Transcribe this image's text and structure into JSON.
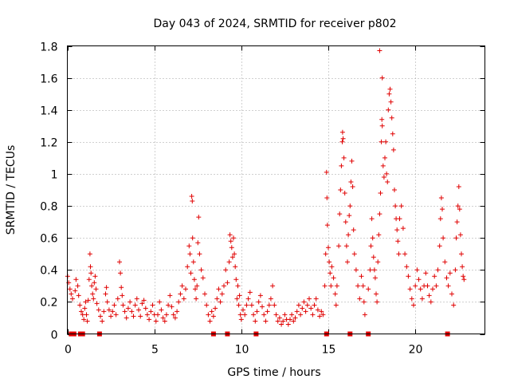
{
  "chart_data": {
    "type": "scatter",
    "title": "Day 043 of 2024, SRMTID for receiver p802",
    "xlabel": "GPS time / hours",
    "ylabel": "SRMTID / TECUs",
    "xlim": [
      0,
      24
    ],
    "ylim": [
      0,
      1.8
    ],
    "xticks": [
      0,
      5,
      10,
      15,
      20
    ],
    "xtick_labels": [
      "0",
      "5",
      "10",
      "15",
      "20"
    ],
    "yticks": [
      0,
      0.2,
      0.4,
      0.6,
      0.8,
      1.0,
      1.2,
      1.4,
      1.6,
      1.8
    ],
    "ytick_labels": [
      "0",
      "0.2",
      "0.4",
      "0.6",
      "0.8",
      "1",
      "1.2",
      "1.4",
      "1.6",
      "1.8"
    ],
    "grid": true,
    "marker": "plus",
    "color": "#e00000",
    "series": [
      {
        "name": "SRMTID",
        "points": [
          [
            0.02,
            0.36
          ],
          [
            0.08,
            0.32
          ],
          [
            0.15,
            0.28
          ],
          [
            0.22,
            0.25
          ],
          [
            0.3,
            0.22
          ],
          [
            0.45,
            0.27
          ],
          [
            0.5,
            0.34
          ],
          [
            0.6,
            0.3
          ],
          [
            0.65,
            0.24
          ],
          [
            0.72,
            0.18
          ],
          [
            0.8,
            0.14
          ],
          [
            0.88,
            0.12
          ],
          [
            0.95,
            0.09
          ],
          [
            1.0,
            0.16
          ],
          [
            1.05,
            0.2
          ],
          [
            1.1,
            0.12
          ],
          [
            1.15,
            0.08
          ],
          [
            1.2,
            0.21
          ],
          [
            1.25,
            0.34
          ],
          [
            1.3,
            0.5
          ],
          [
            1.33,
            0.42
          ],
          [
            1.36,
            0.38
          ],
          [
            1.4,
            0.3
          ],
          [
            1.45,
            0.25
          ],
          [
            1.5,
            0.22
          ],
          [
            1.55,
            0.32
          ],
          [
            1.6,
            0.36
          ],
          [
            1.65,
            0.28
          ],
          [
            1.7,
            0.19
          ],
          [
            1.8,
            0.15
          ],
          [
            1.9,
            0.11
          ],
          [
            2.0,
            0.08
          ],
          [
            2.1,
            0.14
          ],
          [
            2.2,
            0.25
          ],
          [
            2.25,
            0.29
          ],
          [
            2.3,
            0.2
          ],
          [
            2.4,
            0.15
          ],
          [
            2.5,
            0.11
          ],
          [
            2.6,
            0.14
          ],
          [
            2.7,
            0.18
          ],
          [
            2.8,
            0.12
          ],
          [
            2.9,
            0.22
          ],
          [
            3.0,
            0.45
          ],
          [
            3.05,
            0.38
          ],
          [
            3.1,
            0.29
          ],
          [
            3.15,
            0.24
          ],
          [
            3.2,
            0.18
          ],
          [
            3.3,
            0.14
          ],
          [
            3.4,
            0.1
          ],
          [
            3.5,
            0.16
          ],
          [
            3.6,
            0.2
          ],
          [
            3.7,
            0.14
          ],
          [
            3.8,
            0.11
          ],
          [
            3.9,
            0.18
          ],
          [
            4.0,
            0.22
          ],
          [
            4.1,
            0.15
          ],
          [
            4.2,
            0.11
          ],
          [
            4.3,
            0.19
          ],
          [
            4.4,
            0.21
          ],
          [
            4.5,
            0.16
          ],
          [
            4.6,
            0.12
          ],
          [
            4.7,
            0.09
          ],
          [
            4.8,
            0.14
          ],
          [
            4.9,
            0.18
          ],
          [
            5.0,
            0.12
          ],
          [
            5.1,
            0.08
          ],
          [
            5.2,
            0.12
          ],
          [
            5.3,
            0.2
          ],
          [
            5.4,
            0.15
          ],
          [
            5.5,
            0.1
          ],
          [
            5.6,
            0.08
          ],
          [
            5.7,
            0.12
          ],
          [
            5.8,
            0.18
          ],
          [
            5.9,
            0.24
          ],
          [
            6.0,
            0.17
          ],
          [
            6.1,
            0.12
          ],
          [
            6.2,
            0.1
          ],
          [
            6.3,
            0.14
          ],
          [
            6.4,
            0.2
          ],
          [
            6.5,
            0.25
          ],
          [
            6.6,
            0.3
          ],
          [
            6.7,
            0.22
          ],
          [
            6.8,
            0.28
          ],
          [
            6.9,
            0.42
          ],
          [
            7.0,
            0.55
          ],
          [
            7.05,
            0.5
          ],
          [
            7.1,
            0.38
          ],
          [
            7.15,
            0.86
          ],
          [
            7.18,
            0.83
          ],
          [
            7.2,
            0.6
          ],
          [
            7.25,
            0.45
          ],
          [
            7.3,
            0.34
          ],
          [
            7.35,
            0.28
          ],
          [
            7.4,
            0.22
          ],
          [
            7.45,
            0.3
          ],
          [
            7.5,
            0.57
          ],
          [
            7.55,
            0.73
          ],
          [
            7.6,
            0.5
          ],
          [
            7.7,
            0.4
          ],
          [
            7.8,
            0.35
          ],
          [
            7.9,
            0.25
          ],
          [
            8.0,
            0.18
          ],
          [
            8.1,
            0.12
          ],
          [
            8.2,
            0.08
          ],
          [
            8.3,
            0.14
          ],
          [
            8.4,
            0.11
          ],
          [
            8.5,
            0.16
          ],
          [
            8.6,
            0.22
          ],
          [
            8.7,
            0.28
          ],
          [
            8.8,
            0.2
          ],
          [
            8.9,
            0.25
          ],
          [
            9.0,
            0.3
          ],
          [
            9.1,
            0.4
          ],
          [
            9.2,
            0.32
          ],
          [
            9.3,
            0.45
          ],
          [
            9.35,
            0.62
          ],
          [
            9.4,
            0.58
          ],
          [
            9.45,
            0.54
          ],
          [
            9.5,
            0.48
          ],
          [
            9.55,
            0.6
          ],
          [
            9.6,
            0.5
          ],
          [
            9.65,
            0.42
          ],
          [
            9.7,
            0.34
          ],
          [
            9.75,
            0.22
          ],
          [
            9.8,
            0.3
          ],
          [
            9.85,
            0.18
          ],
          [
            9.9,
            0.24
          ],
          [
            9.95,
            0.12
          ],
          [
            10.0,
            0.09
          ],
          [
            10.1,
            0.15
          ],
          [
            10.2,
            0.12
          ],
          [
            10.3,
            0.18
          ],
          [
            10.4,
            0.22
          ],
          [
            10.5,
            0.26
          ],
          [
            10.6,
            0.18
          ],
          [
            10.7,
            0.12
          ],
          [
            10.8,
            0.08
          ],
          [
            10.9,
            0.14
          ],
          [
            11.0,
            0.2
          ],
          [
            11.1,
            0.24
          ],
          [
            11.2,
            0.17
          ],
          [
            11.3,
            0.12
          ],
          [
            11.4,
            0.08
          ],
          [
            11.5,
            0.14
          ],
          [
            11.6,
            0.18
          ],
          [
            11.7,
            0.22
          ],
          [
            11.8,
            0.3
          ],
          [
            11.9,
            0.18
          ],
          [
            12.0,
            0.12
          ],
          [
            12.1,
            0.08
          ],
          [
            12.2,
            0.1
          ],
          [
            12.3,
            0.06
          ],
          [
            12.4,
            0.08
          ],
          [
            12.5,
            0.12
          ],
          [
            12.6,
            0.09
          ],
          [
            12.7,
            0.06
          ],
          [
            12.8,
            0.09
          ],
          [
            12.9,
            0.12
          ],
          [
            13.0,
            0.08
          ],
          [
            13.1,
            0.1
          ],
          [
            13.2,
            0.14
          ],
          [
            13.3,
            0.18
          ],
          [
            13.4,
            0.12
          ],
          [
            13.5,
            0.16
          ],
          [
            13.6,
            0.2
          ],
          [
            13.7,
            0.14
          ],
          [
            13.8,
            0.18
          ],
          [
            13.9,
            0.22
          ],
          [
            14.0,
            0.16
          ],
          [
            14.1,
            0.12
          ],
          [
            14.2,
            0.18
          ],
          [
            14.3,
            0.22
          ],
          [
            14.4,
            0.15
          ],
          [
            14.5,
            0.11
          ],
          [
            14.6,
            0.14
          ],
          [
            14.7,
            0.12
          ],
          [
            14.8,
            0.3
          ],
          [
            14.85,
            0.5
          ],
          [
            14.9,
            1.01
          ],
          [
            14.92,
            0.85
          ],
          [
            14.95,
            0.68
          ],
          [
            15.0,
            0.54
          ],
          [
            15.05,
            0.45
          ],
          [
            15.1,
            0.38
          ],
          [
            15.15,
            0.3
          ],
          [
            15.2,
            0.42
          ],
          [
            15.3,
            0.35
          ],
          [
            15.4,
            0.25
          ],
          [
            15.45,
            0.18
          ],
          [
            15.5,
            0.3
          ],
          [
            15.6,
            0.55
          ],
          [
            15.65,
            0.75
          ],
          [
            15.7,
            0.9
          ],
          [
            15.75,
            1.05
          ],
          [
            15.8,
            1.2
          ],
          [
            15.82,
            1.26
          ],
          [
            15.85,
            1.22
          ],
          [
            15.9,
            1.1
          ],
          [
            15.95,
            0.88
          ],
          [
            16.0,
            0.7
          ],
          [
            16.05,
            0.55
          ],
          [
            16.1,
            0.45
          ],
          [
            16.15,
            0.62
          ],
          [
            16.2,
            0.74
          ],
          [
            16.25,
            0.8
          ],
          [
            16.3,
            0.95
          ],
          [
            16.35,
            1.08
          ],
          [
            16.4,
            0.92
          ],
          [
            16.45,
            0.65
          ],
          [
            16.5,
            0.5
          ],
          [
            16.6,
            0.4
          ],
          [
            16.7,
            0.3
          ],
          [
            16.8,
            0.22
          ],
          [
            16.9,
            0.36
          ],
          [
            17.0,
            0.3
          ],
          [
            17.05,
            0.2
          ],
          [
            17.1,
            0.12
          ],
          [
            17.3,
            0.28
          ],
          [
            17.4,
            0.4
          ],
          [
            17.45,
            0.55
          ],
          [
            17.5,
            0.72
          ],
          [
            17.55,
            0.6
          ],
          [
            17.6,
            0.48
          ],
          [
            17.65,
            0.4
          ],
          [
            17.7,
            0.35
          ],
          [
            17.75,
            0.25
          ],
          [
            17.8,
            0.2
          ],
          [
            17.85,
            0.45
          ],
          [
            17.9,
            0.62
          ],
          [
            17.95,
            0.75
          ],
          [
            18.0,
            0.88
          ],
          [
            18.05,
            1.2
          ],
          [
            18.08,
            1.34
          ],
          [
            18.1,
            1.3
          ],
          [
            18.15,
            1.05
          ],
          [
            18.2,
            0.98
          ],
          [
            18.25,
            1.1
          ],
          [
            18.3,
            1.2
          ],
          [
            18.35,
            1.0
          ],
          [
            18.4,
            0.95
          ],
          [
            18.45,
            1.4
          ],
          [
            18.5,
            1.5
          ],
          [
            18.55,
            1.53
          ],
          [
            18.6,
            1.45
          ],
          [
            18.65,
            1.35
          ],
          [
            18.7,
            1.25
          ],
          [
            18.75,
            1.15
          ],
          [
            18.8,
            0.9
          ],
          [
            18.85,
            0.8
          ],
          [
            18.9,
            0.72
          ],
          [
            18.95,
            0.65
          ],
          [
            19.0,
            0.58
          ],
          [
            19.05,
            0.5
          ],
          [
            19.1,
            0.72
          ],
          [
            19.2,
            0.8
          ],
          [
            19.3,
            0.66
          ],
          [
            19.4,
            0.5
          ],
          [
            19.5,
            0.42
          ],
          [
            19.6,
            0.36
          ],
          [
            19.7,
            0.28
          ],
          [
            19.8,
            0.22
          ],
          [
            19.9,
            0.18
          ],
          [
            20.0,
            0.3
          ],
          [
            20.1,
            0.4
          ],
          [
            20.2,
            0.34
          ],
          [
            20.3,
            0.28
          ],
          [
            20.4,
            0.22
          ],
          [
            20.5,
            0.3
          ],
          [
            20.6,
            0.38
          ],
          [
            20.7,
            0.3
          ],
          [
            20.8,
            0.24
          ],
          [
            20.9,
            0.2
          ],
          [
            21.0,
            0.28
          ],
          [
            21.1,
            0.36
          ],
          [
            21.2,
            0.3
          ],
          [
            21.3,
            0.4
          ],
          [
            21.4,
            0.55
          ],
          [
            21.45,
            0.72
          ],
          [
            21.5,
            0.85
          ],
          [
            21.55,
            0.78
          ],
          [
            21.6,
            0.6
          ],
          [
            21.7,
            0.45
          ],
          [
            21.8,
            0.35
          ],
          [
            21.9,
            0.3
          ],
          [
            22.0,
            0.38
          ],
          [
            22.1,
            0.25
          ],
          [
            22.2,
            0.18
          ],
          [
            22.3,
            0.4
          ],
          [
            22.35,
            0.6
          ],
          [
            22.4,
            0.7
          ],
          [
            22.45,
            0.8
          ],
          [
            22.5,
            0.92
          ],
          [
            22.55,
            0.78
          ],
          [
            22.6,
            0.62
          ],
          [
            22.65,
            0.5
          ],
          [
            22.7,
            0.42
          ],
          [
            22.75,
            0.36
          ],
          [
            22.8,
            0.34
          ],
          [
            17.95,
            1.77
          ],
          [
            18.1,
            1.6
          ]
        ]
      }
    ],
    "gap_markers_x": [
      0.22,
      0.3,
      0.38,
      0.75,
      0.88,
      1.85,
      8.4,
      9.2,
      10.85,
      14.9,
      16.25,
      17.3,
      21.85
    ],
    "gap_markers_y": 0
  }
}
